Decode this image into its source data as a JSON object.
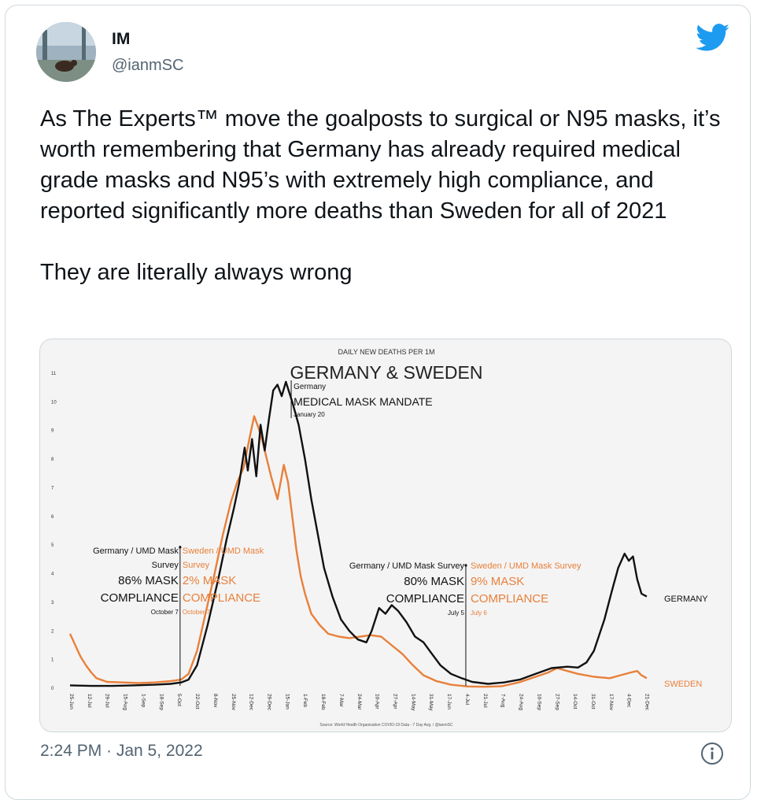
{
  "user": {
    "name": "IM",
    "handle": "@ianmSC"
  },
  "tweet": {
    "paragraphs": [
      "As The Experts™ move the goalposts to surgical or N95 masks, it’s worth remembering that Germany has already required medical grade masks and N95’s with extremely high compliance, and reported significantly more deaths than Sweden for all of 2021",
      "They are literally always wrong"
    ],
    "timestamp": "2:24 PM · Jan 5, 2022"
  },
  "colors": {
    "germany": "#111111",
    "sweden": "#e8803a",
    "twitter_blue": "#1d9bf0"
  },
  "icons": {
    "avatar": "bear-photo-avatar",
    "logo": "twitter-bird-icon",
    "info": "info-icon"
  },
  "chart_data": {
    "type": "line",
    "subtitle": "DAILY NEW DEATHS PER 1M",
    "title": "GERMANY & SWEDEN",
    "source": "Source: World Health Organization COVID-19 Data - 7  Day Avg. / @ianmSC",
    "ylim": [
      0,
      11
    ],
    "yticks": [
      0,
      1,
      2,
      3,
      4,
      5,
      6,
      7,
      8,
      9,
      10,
      11
    ],
    "x_tick_labels": [
      "25-Jun",
      "12-Jul",
      "29-Jul",
      "15-Aug",
      "1-Sep",
      "18-Sep",
      "5-Oct",
      "22-Oct",
      "8-Nov",
      "25-Nov",
      "12-Dec",
      "29-Dec",
      "15-Jan",
      "1-Feb",
      "18-Feb",
      "7-Mar",
      "24-Mar",
      "10-Apr",
      "27-Apr",
      "14-May",
      "31-May",
      "17-Jun",
      "4-Jul",
      "21-Jul",
      "7-Aug",
      "24-Aug",
      "10-Sep",
      "27-Sep",
      "14-Oct",
      "31-Oct",
      "17-Nov",
      "4-Dec",
      "21-Dec"
    ],
    "x_tick_days": [
      0,
      17,
      34,
      51,
      68,
      85,
      102,
      119,
      136,
      153,
      170,
      187,
      204,
      221,
      238,
      255,
      272,
      289,
      306,
      323,
      340,
      357,
      374,
      391,
      408,
      425,
      442,
      459,
      476,
      493,
      510,
      527,
      544
    ],
    "xlim": [
      0,
      580
    ],
    "series": [
      {
        "name": "GERMANY",
        "points": [
          [
            0,
            0.1
          ],
          [
            20,
            0.08
          ],
          [
            40,
            0.08
          ],
          [
            60,
            0.1
          ],
          [
            80,
            0.12
          ],
          [
            95,
            0.15
          ],
          [
            105,
            0.2
          ],
          [
            112,
            0.3
          ],
          [
            120,
            0.8
          ],
          [
            130,
            2.2
          ],
          [
            140,
            3.8
          ],
          [
            148,
            5.2
          ],
          [
            155,
            6.3
          ],
          [
            160,
            7.2
          ],
          [
            165,
            8.4
          ],
          [
            168,
            7.6
          ],
          [
            172,
            8.7
          ],
          [
            176,
            7.4
          ],
          [
            180,
            9.2
          ],
          [
            184,
            8.3
          ],
          [
            188,
            9.4
          ],
          [
            192,
            10.4
          ],
          [
            196,
            10.6
          ],
          [
            200,
            10.2
          ],
          [
            204,
            10.7
          ],
          [
            210,
            10.0
          ],
          [
            216,
            9.2
          ],
          [
            222,
            8.0
          ],
          [
            228,
            6.6
          ],
          [
            234,
            5.4
          ],
          [
            240,
            4.2
          ],
          [
            248,
            3.2
          ],
          [
            256,
            2.4
          ],
          [
            264,
            2.0
          ],
          [
            272,
            1.7
          ],
          [
            280,
            1.6
          ],
          [
            285,
            2.0
          ],
          [
            292,
            2.8
          ],
          [
            298,
            2.6
          ],
          [
            304,
            2.9
          ],
          [
            310,
            2.7
          ],
          [
            318,
            2.3
          ],
          [
            326,
            1.8
          ],
          [
            334,
            1.6
          ],
          [
            342,
            1.2
          ],
          [
            350,
            0.8
          ],
          [
            360,
            0.5
          ],
          [
            370,
            0.35
          ],
          [
            380,
            0.22
          ],
          [
            395,
            0.15
          ],
          [
            410,
            0.2
          ],
          [
            425,
            0.3
          ],
          [
            440,
            0.5
          ],
          [
            455,
            0.7
          ],
          [
            470,
            0.75
          ],
          [
            480,
            0.72
          ],
          [
            488,
            0.9
          ],
          [
            495,
            1.3
          ],
          [
            505,
            2.4
          ],
          [
            512,
            3.4
          ],
          [
            518,
            4.2
          ],
          [
            524,
            4.7
          ],
          [
            528,
            4.45
          ],
          [
            532,
            4.6
          ],
          [
            536,
            3.8
          ],
          [
            540,
            3.3
          ],
          [
            545,
            3.2
          ]
        ]
      },
      {
        "name": "SWEDEN",
        "points": [
          [
            0,
            1.9
          ],
          [
            5,
            1.5
          ],
          [
            10,
            1.1
          ],
          [
            15,
            0.8
          ],
          [
            20,
            0.55
          ],
          [
            25,
            0.35
          ],
          [
            35,
            0.22
          ],
          [
            50,
            0.2
          ],
          [
            65,
            0.18
          ],
          [
            80,
            0.2
          ],
          [
            95,
            0.25
          ],
          [
            105,
            0.3
          ],
          [
            112,
            0.5
          ],
          [
            120,
            1.3
          ],
          [
            128,
            2.6
          ],
          [
            136,
            3.9
          ],
          [
            144,
            5.3
          ],
          [
            152,
            6.5
          ],
          [
            158,
            7.2
          ],
          [
            164,
            7.7
          ],
          [
            170,
            8.8
          ],
          [
            174,
            9.5
          ],
          [
            178,
            9.1
          ],
          [
            182,
            8.6
          ],
          [
            186,
            8.0
          ],
          [
            190,
            7.4
          ],
          [
            196,
            6.6
          ],
          [
            202,
            7.8
          ],
          [
            206,
            7.2
          ],
          [
            210,
            6.0
          ],
          [
            214,
            4.8
          ],
          [
            218,
            3.9
          ],
          [
            222,
            3.3
          ],
          [
            228,
            2.6
          ],
          [
            236,
            2.2
          ],
          [
            244,
            1.9
          ],
          [
            254,
            1.8
          ],
          [
            264,
            1.75
          ],
          [
            274,
            1.8
          ],
          [
            284,
            1.85
          ],
          [
            294,
            1.8
          ],
          [
            304,
            1.5
          ],
          [
            314,
            1.2
          ],
          [
            324,
            0.8
          ],
          [
            334,
            0.45
          ],
          [
            346,
            0.25
          ],
          [
            360,
            0.12
          ],
          [
            376,
            0.06
          ],
          [
            392,
            0.05
          ],
          [
            408,
            0.07
          ],
          [
            424,
            0.2
          ],
          [
            440,
            0.4
          ],
          [
            452,
            0.55
          ],
          [
            460,
            0.7
          ],
          [
            470,
            0.6
          ],
          [
            480,
            0.5
          ],
          [
            495,
            0.4
          ],
          [
            510,
            0.35
          ],
          [
            520,
            0.45
          ],
          [
            530,
            0.55
          ],
          [
            536,
            0.6
          ],
          [
            540,
            0.45
          ],
          [
            545,
            0.35
          ]
        ]
      }
    ],
    "annotations": [
      {
        "country": "Germany",
        "line1": "Germany / UMD Mask",
        "line2": "Survey",
        "pct": "86% MASK",
        "compliance": "COMPLIANCE",
        "date": "October 7",
        "day": 104
      },
      {
        "country": "Sweden",
        "line1": "Sweden / UMD Mask",
        "line2": "Survey",
        "pct": "2% MASK",
        "compliance": "COMPLIANCE",
        "date": "October 7",
        "day": 104
      },
      {
        "country": "Germany",
        "line1": "Germany / UMD Mask Survey",
        "pct": "80% MASK",
        "compliance": "COMPLIANCE",
        "date": "July 5",
        "day": 374
      },
      {
        "country": "Sweden",
        "line1": "Sweden / UMD Mask Survey",
        "pct": "9% MASK",
        "compliance": "COMPLIANCE",
        "date": "July 6",
        "day": 374
      },
      {
        "country": "Germany",
        "line1": "Germany",
        "line2": "MEDICAL MASK MANDATE",
        "date": "January 20",
        "day": 209
      }
    ],
    "end_labels": [
      "GERMANY",
      "SWEDEN"
    ]
  }
}
